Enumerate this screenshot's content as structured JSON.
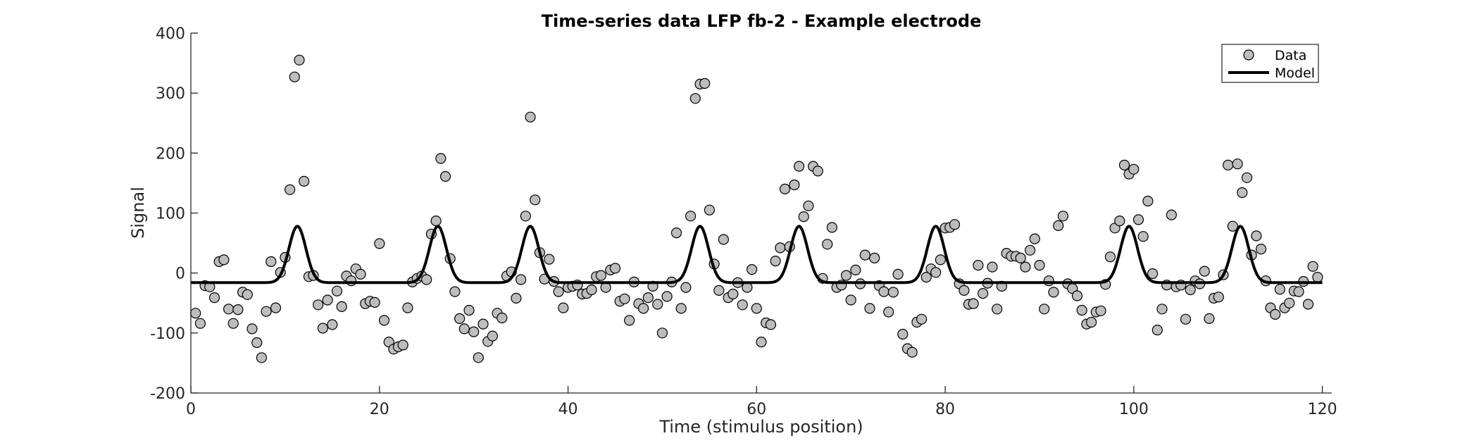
{
  "chart_data": {
    "type": "scatter",
    "title": "Time-series data LFP fb-2 - Example electrode",
    "xlabel": "Time (stimulus position)",
    "ylabel": "Signal",
    "xlim": [
      0,
      121
    ],
    "ylim": [
      -200,
      400
    ],
    "xticks": [
      0,
      20,
      40,
      60,
      80,
      100,
      120
    ],
    "yticks": [
      -200,
      -100,
      0,
      100,
      200,
      300,
      400
    ],
    "xtick_labels": [
      "0",
      "20",
      "40",
      "60",
      "80",
      "100",
      "120"
    ],
    "ytick_labels": [
      "-200",
      "-100",
      "0",
      "100",
      "200",
      "300",
      "400"
    ],
    "grid": false,
    "legend": {
      "position": "top-right",
      "entries": [
        "Data",
        "Model"
      ]
    },
    "series": [
      {
        "name": "Data",
        "kind": "scatter",
        "marker": "circle",
        "color": "#bdbdbd",
        "edge_color": "#000000",
        "points": [
          [
            0.5,
            -67
          ],
          [
            1.0,
            -84
          ],
          [
            1.5,
            -21
          ],
          [
            2.0,
            -23
          ],
          [
            2.5,
            -41
          ],
          [
            3.0,
            19
          ],
          [
            3.5,
            22
          ],
          [
            4.0,
            -60
          ],
          [
            4.5,
            -84
          ],
          [
            5.0,
            -61
          ],
          [
            5.5,
            -32
          ],
          [
            6.0,
            -36
          ],
          [
            6.5,
            -93
          ],
          [
            7.0,
            -116
          ],
          [
            7.5,
            -141
          ],
          [
            8.0,
            -64
          ],
          [
            8.5,
            19
          ],
          [
            9.0,
            -58
          ],
          [
            9.5,
            1
          ],
          [
            10.0,
            26
          ],
          [
            10.5,
            139
          ],
          [
            11.0,
            327
          ],
          [
            11.5,
            355
          ],
          [
            12.0,
            153
          ],
          [
            12.5,
            -6
          ],
          [
            13.0,
            -4
          ],
          [
            13.5,
            -53
          ],
          [
            14.0,
            -92
          ],
          [
            14.5,
            -45
          ],
          [
            15.0,
            -86
          ],
          [
            15.5,
            -30
          ],
          [
            16.0,
            -56
          ],
          [
            16.5,
            -5
          ],
          [
            17.0,
            -13
          ],
          [
            17.5,
            7
          ],
          [
            18.0,
            -2
          ],
          [
            18.5,
            -51
          ],
          [
            19.0,
            -47
          ],
          [
            19.5,
            -49
          ],
          [
            20.0,
            49
          ],
          [
            20.5,
            -79
          ],
          [
            21.0,
            -115
          ],
          [
            21.5,
            -127
          ],
          [
            22.0,
            -123
          ],
          [
            22.5,
            -120
          ],
          [
            23.0,
            -58
          ],
          [
            23.5,
            -15
          ],
          [
            24.0,
            -9
          ],
          [
            24.5,
            -5
          ],
          [
            25.0,
            -11
          ],
          [
            25.5,
            65
          ],
          [
            26.0,
            87
          ],
          [
            26.5,
            191
          ],
          [
            27.0,
            161
          ],
          [
            27.5,
            24
          ],
          [
            28.0,
            -31
          ],
          [
            28.5,
            -76
          ],
          [
            29.0,
            -93
          ],
          [
            29.5,
            -62
          ],
          [
            30.0,
            -98
          ],
          [
            30.5,
            -141
          ],
          [
            31.0,
            -85
          ],
          [
            31.5,
            -114
          ],
          [
            32.0,
            -105
          ],
          [
            32.5,
            -67
          ],
          [
            33.0,
            -75
          ],
          [
            33.5,
            -5
          ],
          [
            34.0,
            2
          ],
          [
            34.5,
            -42
          ],
          [
            35.0,
            -11
          ],
          [
            35.5,
            95
          ],
          [
            36.0,
            260
          ],
          [
            36.5,
            122
          ],
          [
            37.0,
            34
          ],
          [
            37.5,
            -10
          ],
          [
            38.0,
            23
          ],
          [
            38.5,
            -14
          ],
          [
            39.0,
            -31
          ],
          [
            39.5,
            -58
          ],
          [
            40.0,
            -24
          ],
          [
            40.5,
            -22
          ],
          [
            41.0,
            -20
          ],
          [
            41.5,
            -35
          ],
          [
            42.0,
            -34
          ],
          [
            42.5,
            -28
          ],
          [
            43.0,
            -6
          ],
          [
            43.5,
            -4
          ],
          [
            44.0,
            -24
          ],
          [
            44.5,
            5
          ],
          [
            45.0,
            8
          ],
          [
            45.5,
            -47
          ],
          [
            46.0,
            -43
          ],
          [
            46.5,
            -79
          ],
          [
            47.0,
            -15
          ],
          [
            47.5,
            -51
          ],
          [
            48.0,
            -59
          ],
          [
            48.5,
            -41
          ],
          [
            49.0,
            -22
          ],
          [
            49.5,
            -52
          ],
          [
            50.0,
            -100
          ],
          [
            50.5,
            -39
          ],
          [
            51.0,
            -15
          ],
          [
            51.5,
            67
          ],
          [
            52.0,
            -59
          ],
          [
            52.5,
            -24
          ],
          [
            53.0,
            95
          ],
          [
            53.5,
            291
          ],
          [
            54.0,
            315
          ],
          [
            54.5,
            316
          ],
          [
            55.0,
            105
          ],
          [
            55.5,
            15
          ],
          [
            56.0,
            -29
          ],
          [
            56.5,
            56
          ],
          [
            57.0,
            -41
          ],
          [
            57.5,
            -35
          ],
          [
            58.0,
            -16
          ],
          [
            58.5,
            -53
          ],
          [
            59.0,
            -24
          ],
          [
            59.5,
            6
          ],
          [
            60.0,
            -59
          ],
          [
            60.5,
            -115
          ],
          [
            61.0,
            -83
          ],
          [
            61.5,
            -86
          ],
          [
            62.0,
            20
          ],
          [
            62.5,
            42
          ],
          [
            63.0,
            140
          ],
          [
            63.5,
            44
          ],
          [
            64.0,
            147
          ],
          [
            64.5,
            178
          ],
          [
            65.0,
            94
          ],
          [
            65.5,
            112
          ],
          [
            66.0,
            178
          ],
          [
            66.5,
            170
          ],
          [
            67.0,
            -9
          ],
          [
            67.5,
            48
          ],
          [
            68.0,
            76
          ],
          [
            68.5,
            -24
          ],
          [
            69.0,
            -20
          ],
          [
            69.5,
            -4
          ],
          [
            70.0,
            -45
          ],
          [
            70.5,
            5
          ],
          [
            71.0,
            -18
          ],
          [
            71.5,
            30
          ],
          [
            72.0,
            -59
          ],
          [
            72.5,
            25
          ],
          [
            73.0,
            -21
          ],
          [
            73.5,
            -31
          ],
          [
            74.0,
            -65
          ],
          [
            74.5,
            -32
          ],
          [
            75.0,
            -2
          ],
          [
            75.5,
            -102
          ],
          [
            76.0,
            -126
          ],
          [
            76.5,
            -132
          ],
          [
            77.0,
            -82
          ],
          [
            77.5,
            -77
          ],
          [
            78.0,
            -7
          ],
          [
            78.5,
            7
          ],
          [
            79.0,
            1
          ],
          [
            79.5,
            22
          ],
          [
            80.0,
            75
          ],
          [
            80.5,
            76
          ],
          [
            81.0,
            81
          ],
          [
            81.5,
            -18
          ],
          [
            82.0,
            -29
          ],
          [
            82.5,
            -52
          ],
          [
            83.0,
            -51
          ],
          [
            83.5,
            13
          ],
          [
            84.0,
            -34
          ],
          [
            84.5,
            -17
          ],
          [
            85.0,
            10
          ],
          [
            85.5,
            -60
          ],
          [
            86.0,
            -22
          ],
          [
            86.5,
            33
          ],
          [
            87.0,
            28
          ],
          [
            87.5,
            28
          ],
          [
            88.0,
            25
          ],
          [
            88.5,
            10
          ],
          [
            89.0,
            38
          ],
          [
            89.5,
            57
          ],
          [
            90.0,
            13
          ],
          [
            90.5,
            -60
          ],
          [
            91.0,
            -13
          ],
          [
            91.5,
            -32
          ],
          [
            92.0,
            79
          ],
          [
            92.5,
            95
          ],
          [
            93.0,
            -18
          ],
          [
            93.5,
            -26
          ],
          [
            94.0,
            -38
          ],
          [
            94.5,
            -62
          ],
          [
            95.0,
            -85
          ],
          [
            95.5,
            -82
          ],
          [
            96.0,
            -65
          ],
          [
            96.5,
            -63
          ],
          [
            97.0,
            -19
          ],
          [
            97.5,
            27
          ],
          [
            98.0,
            75
          ],
          [
            98.5,
            87
          ],
          [
            99.0,
            180
          ],
          [
            99.5,
            165
          ],
          [
            100.0,
            173
          ],
          [
            100.5,
            89
          ],
          [
            101.0,
            61
          ],
          [
            101.5,
            120
          ],
          [
            102.0,
            -1
          ],
          [
            102.5,
            -95
          ],
          [
            103.0,
            -60
          ],
          [
            103.5,
            -20
          ],
          [
            104.0,
            97
          ],
          [
            104.5,
            -23
          ],
          [
            105.0,
            -20
          ],
          [
            105.5,
            -77
          ],
          [
            106.0,
            -28
          ],
          [
            106.5,
            -13
          ],
          [
            107.0,
            -18
          ],
          [
            107.5,
            3
          ],
          [
            108.0,
            -76
          ],
          [
            108.5,
            -42
          ],
          [
            109.0,
            -40
          ],
          [
            109.5,
            -3
          ],
          [
            110.0,
            180
          ],
          [
            110.5,
            78
          ],
          [
            111.0,
            182
          ],
          [
            111.5,
            134
          ],
          [
            112.0,
            159
          ],
          [
            112.5,
            30
          ],
          [
            113.0,
            62
          ],
          [
            113.5,
            40
          ],
          [
            114.0,
            -13
          ],
          [
            114.5,
            -58
          ],
          [
            115.0,
            -69
          ],
          [
            115.5,
            -27
          ],
          [
            116.0,
            -58
          ],
          [
            116.5,
            -50
          ],
          [
            117.0,
            -30
          ],
          [
            117.5,
            -31
          ],
          [
            118.0,
            -14
          ],
          [
            118.5,
            -52
          ],
          [
            119.0,
            11
          ],
          [
            119.5,
            -7
          ]
        ]
      },
      {
        "name": "Model",
        "kind": "line",
        "color": "#000000",
        "baseline": -16,
        "peak": 78,
        "peak_width": 0.9,
        "peak_centers": [
          11.3,
          26.2,
          36.0,
          54.0,
          64.5,
          79.0,
          99.5,
          111.3
        ],
        "x_range": [
          0,
          120
        ]
      }
    ]
  }
}
